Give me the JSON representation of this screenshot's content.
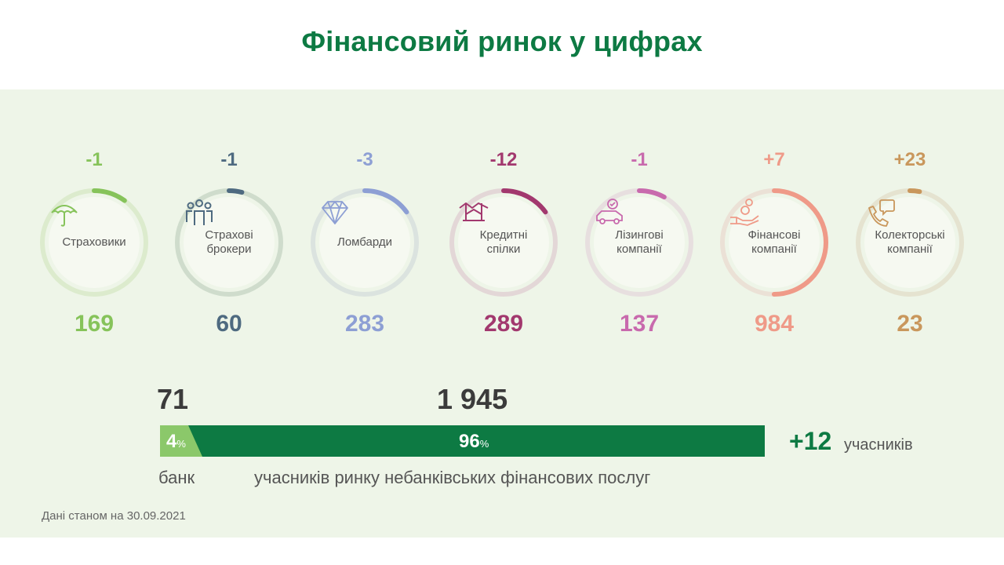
{
  "title": "Фінансовий ринок у цифрах",
  "categories": [
    {
      "label": "Страховики",
      "delta": "-1",
      "count": "169",
      "color": "#86c35a",
      "track": "#dcebcd",
      "fill": 0.1,
      "icon": "umbrella-icon"
    },
    {
      "label": "Страхові\nброкери",
      "delta": "-1",
      "count": "60",
      "color": "#4e6a80",
      "track": "#cfdccc",
      "fill": 0.04,
      "icon": "people-group-icon"
    },
    {
      "label": "Ломбарди",
      "delta": "-3",
      "count": "283",
      "color": "#8d9fd4",
      "track": "#dbe3df",
      "fill": 0.15,
      "icon": "diamond-icon"
    },
    {
      "label": "Кредитні\nспілки",
      "delta": "-12",
      "count": "289",
      "color": "#a2386e",
      "track": "#e3d7d7",
      "fill": 0.15,
      "icon": "handshake-icon"
    },
    {
      "label": "Лізингові\nкомпанії",
      "delta": "-1",
      "count": "137",
      "color": "#c86aad",
      "track": "#e7dfdf",
      "fill": 0.08,
      "icon": "car-icon"
    },
    {
      "label": "Фінансові\nкомпанії",
      "delta": "+7",
      "count": "984",
      "color": "#ef9a88",
      "track": "#ebe1d6",
      "fill": 0.5,
      "icon": "hand-coins-icon"
    },
    {
      "label": "Колекторські\nкомпанії",
      "delta": "+23",
      "count": "23",
      "color": "#c9975c",
      "track": "#e5e3d0",
      "fill": 0.03,
      "icon": "phone-chat-icon"
    }
  ],
  "summary": {
    "bank_count": "71",
    "nonbank_count": "1 945",
    "bank_pct": "4",
    "nonbank_pct": "96",
    "pct_sign": "%",
    "bank_label": "банк",
    "nonbank_label": "учасників ринку небанківських фінансових послуг",
    "change": "+12",
    "change_label": "учасників",
    "bank_color": "#8bc86a",
    "nonbank_color": "#0d7a43"
  },
  "footnote": "Дані станом на 30.09.2021"
}
